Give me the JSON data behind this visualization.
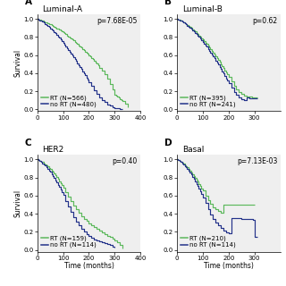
{
  "panels": [
    {
      "label": "A",
      "title": "Luminal-A",
      "pvalue": "p=7.68E-05",
      "rt_label": "RT (N=566)",
      "nort_label": "no RT (N=480)",
      "xlim": [
        0,
        400
      ],
      "ylim": [
        -0.02,
        1.05
      ],
      "xticks": [
        0,
        100,
        200,
        300,
        400
      ],
      "yticks": [
        0.0,
        0.2,
        0.4,
        0.6,
        0.8,
        1.0
      ],
      "show_ylabel": true,
      "show_xlabel": false,
      "rt_t": [
        0,
        5,
        10,
        15,
        20,
        25,
        30,
        35,
        40,
        45,
        50,
        55,
        60,
        65,
        70,
        75,
        80,
        85,
        90,
        95,
        100,
        105,
        110,
        115,
        120,
        125,
        130,
        135,
        140,
        145,
        150,
        155,
        160,
        165,
        170,
        175,
        180,
        185,
        190,
        195,
        200,
        205,
        210,
        215,
        220,
        225,
        230,
        235,
        240,
        250,
        260,
        270,
        280,
        290,
        300,
        305,
        310,
        315,
        320,
        325,
        330,
        340,
        350
      ],
      "rt_s": [
        1.0,
        0.995,
        0.989,
        0.983,
        0.977,
        0.971,
        0.965,
        0.958,
        0.951,
        0.944,
        0.937,
        0.93,
        0.922,
        0.914,
        0.906,
        0.897,
        0.888,
        0.879,
        0.869,
        0.859,
        0.849,
        0.839,
        0.828,
        0.817,
        0.806,
        0.795,
        0.783,
        0.771,
        0.759,
        0.747,
        0.734,
        0.721,
        0.708,
        0.695,
        0.682,
        0.668,
        0.654,
        0.64,
        0.626,
        0.612,
        0.597,
        0.582,
        0.567,
        0.552,
        0.536,
        0.52,
        0.503,
        0.486,
        0.46,
        0.43,
        0.39,
        0.34,
        0.28,
        0.22,
        0.16,
        0.15,
        0.14,
        0.13,
        0.11,
        0.1,
        0.09,
        0.06,
        0.02
      ],
      "nort_t": [
        0,
        5,
        10,
        15,
        20,
        25,
        30,
        35,
        40,
        45,
        50,
        55,
        60,
        65,
        70,
        75,
        80,
        85,
        90,
        95,
        100,
        105,
        110,
        115,
        120,
        125,
        130,
        135,
        140,
        145,
        150,
        155,
        160,
        165,
        170,
        175,
        180,
        185,
        190,
        195,
        200,
        210,
        220,
        230,
        240,
        250,
        260,
        270,
        280,
        290,
        300,
        310,
        320,
        330
      ],
      "nort_s": [
        1.0,
        0.993,
        0.985,
        0.976,
        0.967,
        0.957,
        0.946,
        0.935,
        0.923,
        0.91,
        0.897,
        0.883,
        0.869,
        0.854,
        0.838,
        0.822,
        0.806,
        0.789,
        0.771,
        0.753,
        0.735,
        0.717,
        0.698,
        0.679,
        0.659,
        0.639,
        0.619,
        0.598,
        0.577,
        0.556,
        0.534,
        0.512,
        0.49,
        0.468,
        0.445,
        0.422,
        0.399,
        0.376,
        0.352,
        0.328,
        0.304,
        0.256,
        0.21,
        0.17,
        0.135,
        0.105,
        0.08,
        0.058,
        0.04,
        0.025,
        0.015,
        0.01,
        0.005,
        0.0
      ]
    },
    {
      "label": "B",
      "title": "Luminal-B",
      "pvalue": "p=0.62",
      "rt_label": "RT (N=395)",
      "nort_label": "no RT (N=241)",
      "xlim": [
        0,
        400
      ],
      "ylim": [
        -0.02,
        1.05
      ],
      "xticks": [
        0,
        100,
        200,
        300
      ],
      "yticks": [
        0.0,
        0.2,
        0.4,
        0.6,
        0.8,
        1.0
      ],
      "show_ylabel": false,
      "show_xlabel": false,
      "rt_t": [
        0,
        5,
        10,
        15,
        20,
        25,
        30,
        35,
        40,
        45,
        50,
        55,
        60,
        65,
        70,
        75,
        80,
        85,
        90,
        95,
        100,
        105,
        110,
        115,
        120,
        125,
        130,
        135,
        140,
        145,
        150,
        155,
        160,
        165,
        170,
        175,
        180,
        185,
        190,
        195,
        200,
        210,
        220,
        230,
        240,
        250,
        260,
        270,
        280,
        290,
        300,
        310
      ],
      "rt_s": [
        1.0,
        0.994,
        0.987,
        0.98,
        0.972,
        0.963,
        0.954,
        0.944,
        0.934,
        0.923,
        0.911,
        0.899,
        0.887,
        0.874,
        0.861,
        0.847,
        0.833,
        0.818,
        0.803,
        0.787,
        0.771,
        0.754,
        0.737,
        0.72,
        0.702,
        0.684,
        0.665,
        0.646,
        0.627,
        0.607,
        0.587,
        0.566,
        0.545,
        0.523,
        0.501,
        0.479,
        0.456,
        0.433,
        0.409,
        0.385,
        0.36,
        0.31,
        0.265,
        0.225,
        0.195,
        0.17,
        0.155,
        0.145,
        0.138,
        0.133,
        0.13,
        0.128
      ],
      "nort_t": [
        0,
        5,
        10,
        15,
        20,
        25,
        30,
        35,
        40,
        45,
        50,
        55,
        60,
        65,
        70,
        75,
        80,
        85,
        90,
        95,
        100,
        105,
        110,
        115,
        120,
        125,
        130,
        135,
        140,
        145,
        150,
        155,
        160,
        165,
        170,
        175,
        180,
        185,
        190,
        195,
        200,
        210,
        220,
        230,
        240,
        250,
        260,
        270,
        280,
        290,
        300,
        310
      ],
      "nort_s": [
        1.0,
        0.993,
        0.985,
        0.977,
        0.968,
        0.958,
        0.948,
        0.937,
        0.926,
        0.914,
        0.901,
        0.888,
        0.875,
        0.861,
        0.846,
        0.831,
        0.815,
        0.799,
        0.782,
        0.765,
        0.747,
        0.728,
        0.709,
        0.69,
        0.67,
        0.649,
        0.628,
        0.607,
        0.585,
        0.563,
        0.54,
        0.517,
        0.493,
        0.469,
        0.445,
        0.42,
        0.395,
        0.369,
        0.343,
        0.317,
        0.29,
        0.238,
        0.192,
        0.158,
        0.132,
        0.115,
        0.105,
        0.13,
        0.125,
        0.122,
        0.12,
        0.118
      ]
    },
    {
      "label": "C",
      "title": "HER2",
      "pvalue": "p=0.40",
      "rt_label": "RT (N=159)",
      "nort_label": "no RT (N=114)",
      "xlim": [
        0,
        400
      ],
      "ylim": [
        -0.02,
        1.05
      ],
      "xticks": [
        0,
        100,
        200,
        300,
        400
      ],
      "yticks": [
        0.0,
        0.2,
        0.4,
        0.6,
        0.8,
        1.0
      ],
      "show_ylabel": true,
      "show_xlabel": true,
      "rt_t": [
        0,
        5,
        10,
        15,
        20,
        25,
        30,
        35,
        40,
        45,
        50,
        55,
        60,
        65,
        70,
        75,
        80,
        85,
        90,
        95,
        100,
        110,
        120,
        130,
        140,
        150,
        160,
        170,
        180,
        190,
        200,
        210,
        220,
        230,
        240,
        250,
        260,
        270,
        280,
        290,
        300,
        310,
        320,
        330
      ],
      "rt_s": [
        1.0,
        0.993,
        0.985,
        0.977,
        0.968,
        0.958,
        0.947,
        0.935,
        0.922,
        0.908,
        0.893,
        0.877,
        0.86,
        0.842,
        0.823,
        0.803,
        0.782,
        0.76,
        0.737,
        0.714,
        0.69,
        0.641,
        0.592,
        0.543,
        0.494,
        0.45,
        0.41,
        0.375,
        0.345,
        0.318,
        0.295,
        0.275,
        0.255,
        0.232,
        0.212,
        0.195,
        0.175,
        0.158,
        0.14,
        0.12,
        0.1,
        0.08,
        0.055,
        0.02
      ],
      "nort_t": [
        0,
        5,
        10,
        15,
        20,
        25,
        30,
        35,
        40,
        45,
        50,
        55,
        60,
        65,
        70,
        75,
        80,
        85,
        90,
        95,
        100,
        110,
        120,
        130,
        140,
        150,
        160,
        170,
        180,
        190,
        200,
        210,
        220,
        230,
        240,
        250,
        260,
        270,
        280,
        290,
        300
      ],
      "nort_s": [
        1.0,
        0.991,
        0.981,
        0.97,
        0.958,
        0.945,
        0.93,
        0.914,
        0.897,
        0.879,
        0.86,
        0.839,
        0.817,
        0.794,
        0.77,
        0.745,
        0.719,
        0.692,
        0.664,
        0.635,
        0.605,
        0.543,
        0.48,
        0.42,
        0.365,
        0.315,
        0.272,
        0.236,
        0.205,
        0.178,
        0.155,
        0.135,
        0.118,
        0.104,
        0.092,
        0.082,
        0.072,
        0.062,
        0.052,
        0.04,
        0.025
      ]
    },
    {
      "label": "D",
      "title": "Basal",
      "pvalue": "p=7.13E-03",
      "rt_label": "RT (N=210)",
      "nort_label": "no RT (N=114)",
      "xlim": [
        0,
        400
      ],
      "ylim": [
        -0.02,
        1.05
      ],
      "xticks": [
        0,
        100,
        200,
        300
      ],
      "yticks": [
        0.0,
        0.2,
        0.4,
        0.6,
        0.8,
        1.0
      ],
      "show_ylabel": false,
      "show_xlabel": true,
      "rt_t": [
        0,
        5,
        10,
        15,
        20,
        25,
        30,
        35,
        40,
        45,
        50,
        55,
        60,
        65,
        70,
        75,
        80,
        85,
        90,
        95,
        100,
        110,
        120,
        130,
        140,
        150,
        160,
        170,
        180,
        190,
        200,
        210,
        220,
        230,
        240,
        250,
        260,
        270,
        280,
        290,
        300
      ],
      "rt_s": [
        1.0,
        0.993,
        0.984,
        0.974,
        0.963,
        0.951,
        0.938,
        0.924,
        0.909,
        0.893,
        0.876,
        0.857,
        0.838,
        0.818,
        0.797,
        0.775,
        0.752,
        0.729,
        0.705,
        0.68,
        0.654,
        0.601,
        0.548,
        0.505,
        0.47,
        0.445,
        0.428,
        0.415,
        0.5,
        0.5,
        0.5,
        0.5,
        0.5,
        0.5,
        0.5,
        0.5,
        0.5,
        0.5,
        0.5,
        0.5,
        0.5
      ],
      "nort_t": [
        0,
        5,
        10,
        15,
        20,
        25,
        30,
        35,
        40,
        45,
        50,
        55,
        60,
        65,
        70,
        75,
        80,
        85,
        90,
        95,
        100,
        110,
        120,
        130,
        140,
        150,
        160,
        170,
        180,
        190,
        200,
        210,
        220,
        230,
        240,
        250,
        260,
        270,
        280,
        290,
        295,
        300,
        310
      ],
      "nort_s": [
        1.0,
        0.991,
        0.981,
        0.969,
        0.957,
        0.943,
        0.928,
        0.911,
        0.893,
        0.874,
        0.853,
        0.831,
        0.808,
        0.783,
        0.758,
        0.731,
        0.703,
        0.674,
        0.644,
        0.613,
        0.581,
        0.515,
        0.449,
        0.393,
        0.345,
        0.303,
        0.268,
        0.24,
        0.216,
        0.196,
        0.179,
        0.355,
        0.352,
        0.35,
        0.348,
        0.345,
        0.343,
        0.341,
        0.339,
        0.337,
        0.335,
        0.14,
        0.14
      ]
    }
  ],
  "rt_color": "#5cb85c",
  "nort_color": "#23328a",
  "bg_color": "#efefef",
  "font_size": 5.5,
  "title_font_size": 6.5,
  "legend_font_size": 5.0,
  "pvalue_font_size": 5.5,
  "lw": 0.85
}
